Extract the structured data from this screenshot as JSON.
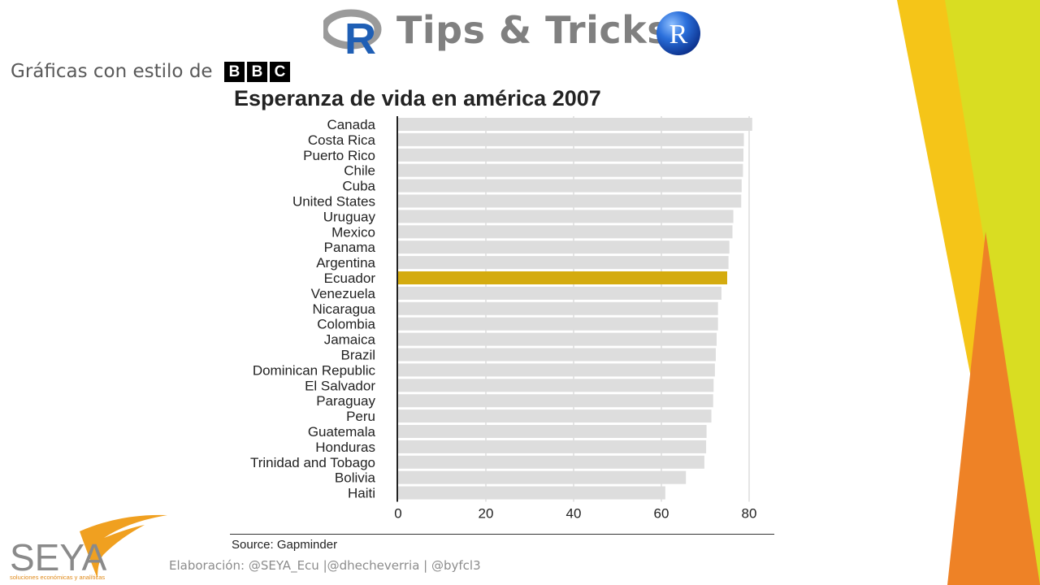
{
  "header": {
    "title": "Tips & Tricks",
    "r_logo_letter": "R",
    "subtitle": "Gráficas con estilo de",
    "bbc_letters": [
      "B",
      "B",
      "C"
    ]
  },
  "chart_data": {
    "type": "bar",
    "orientation": "horizontal",
    "title": "Esperanza de vida en américa 2007",
    "xlabel": "",
    "ylabel": "",
    "xlim": [
      0,
      80
    ],
    "xticks": [
      0,
      20,
      40,
      60,
      80
    ],
    "grid": true,
    "highlight_category": "Ecuador",
    "colors": {
      "bar": "#dddddd",
      "highlight": "#d4ab0f"
    },
    "categories": [
      "Canada",
      "Costa Rica",
      "Puerto Rico",
      "Chile",
      "Cuba",
      "United States",
      "Uruguay",
      "Mexico",
      "Panama",
      "Argentina",
      "Ecuador",
      "Venezuela",
      "Nicaragua",
      "Colombia",
      "Jamaica",
      "Brazil",
      "Dominican Republic",
      "El Salvador",
      "Paraguay",
      "Peru",
      "Guatemala",
      "Honduras",
      "Trinidad and Tobago",
      "Bolivia",
      "Haiti"
    ],
    "values": [
      80.7,
      78.8,
      78.7,
      78.6,
      78.3,
      78.2,
      76.4,
      76.2,
      75.5,
      75.3,
      75.0,
      73.7,
      72.9,
      72.9,
      72.6,
      72.4,
      72.2,
      71.9,
      71.8,
      71.4,
      70.3,
      70.2,
      69.8,
      65.6,
      60.9
    ],
    "source": "Source: Gapminder"
  },
  "footer": {
    "logo_text": "SEYA",
    "logo_tagline": "soluciones económicas y analíticas",
    "credits": "Elaboración: @SEYA_Ecu |@dhecheverria | @byfcl3"
  }
}
